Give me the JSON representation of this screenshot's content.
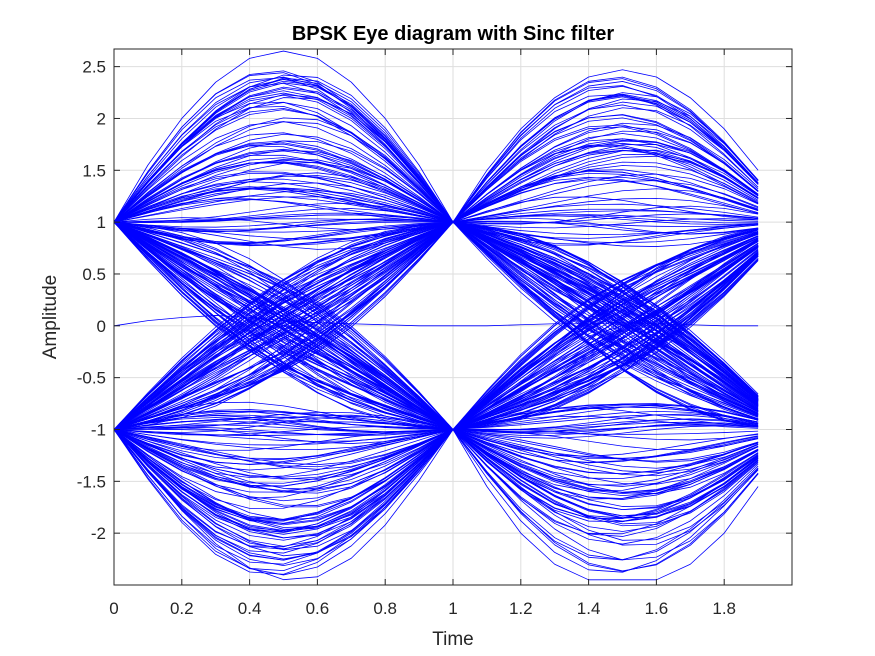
{
  "chart_data": {
    "type": "line",
    "title": "BPSK Eye diagram with Sinc filter",
    "xlabel": "Time",
    "ylabel": "Amplitude",
    "xlim": [
      0,
      2
    ],
    "ylim": [
      -2.5,
      2.67
    ],
    "x_ticks": [
      0,
      0.2,
      0.4,
      0.6,
      0.8,
      1,
      1.2,
      1.4,
      1.6,
      1.8
    ],
    "x_tick_labels": [
      "0",
      "0.2",
      "0.4",
      "0.6",
      "0.8",
      "1",
      "1.2",
      "1.4",
      "1.6",
      "1.8"
    ],
    "y_ticks": [
      2.5,
      2,
      1.5,
      1,
      0.5,
      0,
      -0.5,
      -1,
      -1.5,
      -2
    ],
    "y_tick_labels": [
      "2.5",
      "2",
      "1.5",
      "1",
      "0.5",
      "0",
      "-0.5",
      "-1",
      "-1.5",
      "-2"
    ],
    "grid": true,
    "line_color": "#0000ff",
    "x_start": 0,
    "x_end": 1.9,
    "x_step": 0.1,
    "trace_count": 320,
    "symbol_levels": [
      1,
      -1
    ],
    "peak_amplitude_max": 2.65,
    "trough_amplitude_min": -2.45,
    "series": [
      {
        "values": [
          1,
          1.55,
          2.0,
          2.35,
          2.58,
          2.65,
          2.58,
          2.35,
          2.0,
          1.55,
          1,
          1.5,
          1.9,
          2.2,
          2.4,
          2.47,
          2.4,
          2.2,
          1.9,
          1.5
        ]
      },
      {
        "values": [
          -1,
          -1.4,
          -1.75,
          -2.02,
          -2.19,
          -2.25,
          -2.19,
          -2.02,
          -1.75,
          -1.4,
          -1,
          -1.55,
          -2.0,
          -2.3,
          -2.45,
          -2.45,
          -2.45,
          -2.3,
          -2.0,
          -1.55
        ]
      },
      {
        "values": [
          0,
          0.05,
          0.08,
          0.1,
          0.08,
          0.05,
          0.03,
          0.02,
          0.01,
          0.0,
          0,
          0.0,
          0.01,
          0.02,
          0.02,
          0.03,
          0.02,
          0.01,
          0.0,
          0.0
        ]
      },
      {
        "values": [
          1,
          0.75,
          0.5,
          0.25,
          0.1,
          0.0,
          -0.1,
          -0.35,
          -0.6,
          -0.82,
          -1,
          -0.8,
          -0.55,
          -0.3,
          -0.1,
          0.0,
          0.1,
          0.35,
          0.6,
          0.82
        ]
      },
      {
        "values": [
          -1,
          -0.78,
          -0.52,
          -0.28,
          -0.1,
          0.0,
          0.12,
          0.36,
          0.6,
          0.82,
          1,
          0.8,
          0.55,
          0.3,
          0.1,
          0.0,
          -0.1,
          -0.35,
          -0.6,
          -0.82
        ]
      }
    ]
  }
}
